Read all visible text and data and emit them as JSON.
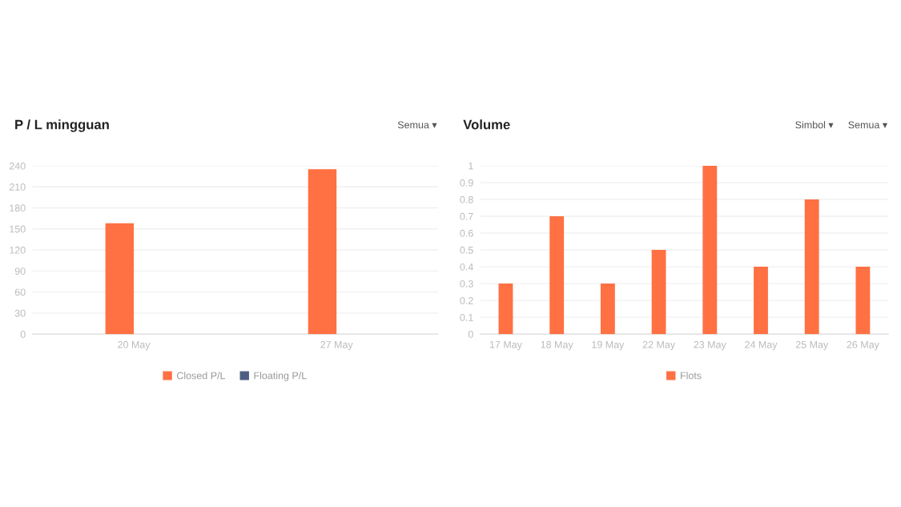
{
  "chart_data": [
    {
      "type": "bar",
      "title": "P / L mingguan",
      "annotations": [
        "Semua ▾"
      ],
      "categories": [
        "20 May",
        "27 May"
      ],
      "series": [
        {
          "name": "Closed P/L",
          "color": "#ff7043",
          "values": [
            158,
            235
          ]
        },
        {
          "name": "Floating P/L",
          "color": "#4e5d82",
          "values": [
            null,
            null
          ]
        }
      ],
      "ylim": [
        0,
        240
      ],
      "yticks": [
        0,
        30,
        60,
        90,
        120,
        150,
        180,
        210,
        240
      ],
      "grid": "y",
      "legend": "bottom"
    },
    {
      "type": "bar",
      "title": "Volume",
      "annotations": [
        "Simbol ▾",
        "Semua ▾"
      ],
      "categories": [
        "17 May",
        "18 May",
        "19 May",
        "22 May",
        "23 May",
        "24 May",
        "25 May",
        "26 May"
      ],
      "series": [
        {
          "name": "Flots",
          "color": "#ff7043",
          "values": [
            0.3,
            0.7,
            0.3,
            0.5,
            1,
            0.4,
            0.8,
            0.4
          ]
        }
      ],
      "ylim": [
        0,
        1
      ],
      "yticks": [
        0,
        0.1,
        0.2,
        0.3,
        0.4,
        0.5,
        0.6,
        0.7,
        0.8,
        0.9,
        1
      ],
      "grid": "y",
      "legend": "bottom"
    }
  ]
}
